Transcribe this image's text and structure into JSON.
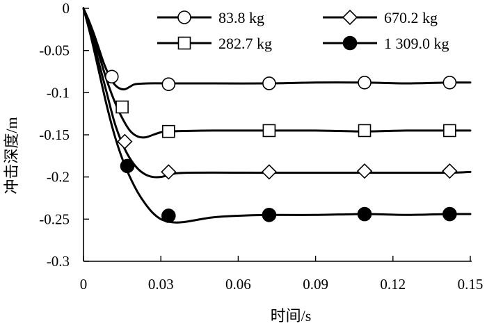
{
  "chart_data": {
    "type": "line",
    "title": "",
    "xlabel": "时间/s",
    "ylabel": "冲击深度/m",
    "xlim": [
      0,
      0.15
    ],
    "ylim": [
      -0.3,
      0
    ],
    "xticks": [
      0,
      0.03,
      0.06,
      0.09,
      0.12,
      0.15
    ],
    "xtick_labels": [
      "0",
      "0.03",
      "0.06",
      "0.09",
      "0.12",
      "0.15"
    ],
    "yticks": [
      0,
      -0.05,
      -0.1,
      -0.15,
      -0.2,
      -0.25,
      -0.3
    ],
    "ytick_labels": [
      "0",
      "-0.05",
      "-0.1",
      "-0.15",
      "-0.2",
      "-0.25",
      "-0.3"
    ],
    "grid": false,
    "legend_position": "top",
    "series": [
      {
        "name": "83.8 kg",
        "marker": "circle-open",
        "curve": [
          [
            0,
            0
          ],
          [
            0.002,
            -0.014
          ],
          [
            0.004,
            -0.03
          ],
          [
            0.006,
            -0.048
          ],
          [
            0.008,
            -0.066
          ],
          [
            0.01,
            -0.08
          ],
          [
            0.012,
            -0.09
          ],
          [
            0.014,
            -0.095
          ],
          [
            0.016,
            -0.096
          ],
          [
            0.018,
            -0.093
          ],
          [
            0.02,
            -0.09
          ],
          [
            0.025,
            -0.089
          ],
          [
            0.033,
            -0.089
          ],
          [
            0.05,
            -0.089
          ],
          [
            0.072,
            -0.089
          ],
          [
            0.09,
            -0.088
          ],
          [
            0.109,
            -0.088
          ],
          [
            0.125,
            -0.089
          ],
          [
            0.142,
            -0.088
          ],
          [
            0.15,
            -0.088
          ]
        ],
        "markers": [
          [
            0.011,
            -0.081
          ],
          [
            0.033,
            -0.09
          ],
          [
            0.072,
            -0.089
          ],
          [
            0.109,
            -0.088
          ],
          [
            0.142,
            -0.088
          ]
        ]
      },
      {
        "name": "282.7 kg",
        "marker": "square-open",
        "curve": [
          [
            0,
            0
          ],
          [
            0.003,
            -0.025
          ],
          [
            0.006,
            -0.055
          ],
          [
            0.009,
            -0.085
          ],
          [
            0.012,
            -0.11
          ],
          [
            0.015,
            -0.13
          ],
          [
            0.018,
            -0.145
          ],
          [
            0.021,
            -0.152
          ],
          [
            0.024,
            -0.153
          ],
          [
            0.027,
            -0.15
          ],
          [
            0.03,
            -0.147
          ],
          [
            0.033,
            -0.146
          ],
          [
            0.05,
            -0.145
          ],
          [
            0.072,
            -0.145
          ],
          [
            0.09,
            -0.145
          ],
          [
            0.109,
            -0.146
          ],
          [
            0.125,
            -0.145
          ],
          [
            0.142,
            -0.145
          ],
          [
            0.15,
            -0.145
          ]
        ],
        "markers": [
          [
            0.015,
            -0.117
          ],
          [
            0.033,
            -0.146
          ],
          [
            0.072,
            -0.145
          ],
          [
            0.109,
            -0.145
          ],
          [
            0.142,
            -0.145
          ]
        ]
      },
      {
        "name": "670.2 kg",
        "marker": "diamond-open",
        "curve": [
          [
            0,
            0
          ],
          [
            0.003,
            -0.03
          ],
          [
            0.006,
            -0.065
          ],
          [
            0.009,
            -0.1
          ],
          [
            0.012,
            -0.135
          ],
          [
            0.015,
            -0.16
          ],
          [
            0.018,
            -0.178
          ],
          [
            0.021,
            -0.19
          ],
          [
            0.024,
            -0.197
          ],
          [
            0.027,
            -0.2
          ],
          [
            0.03,
            -0.2
          ],
          [
            0.033,
            -0.198
          ],
          [
            0.04,
            -0.195
          ],
          [
            0.072,
            -0.195
          ],
          [
            0.09,
            -0.195
          ],
          [
            0.109,
            -0.195
          ],
          [
            0.125,
            -0.195
          ],
          [
            0.142,
            -0.195
          ],
          [
            0.15,
            -0.194
          ]
        ],
        "markers": [
          [
            0.016,
            -0.158
          ],
          [
            0.033,
            -0.194
          ],
          [
            0.072,
            -0.194
          ],
          [
            0.109,
            -0.193
          ],
          [
            0.142,
            -0.193
          ]
        ]
      },
      {
        "name": "1 309.0 kg",
        "marker": "circle-filled",
        "curve": [
          [
            0,
            0
          ],
          [
            0.003,
            -0.035
          ],
          [
            0.006,
            -0.075
          ],
          [
            0.009,
            -0.115
          ],
          [
            0.012,
            -0.15
          ],
          [
            0.015,
            -0.178
          ],
          [
            0.018,
            -0.2
          ],
          [
            0.021,
            -0.218
          ],
          [
            0.024,
            -0.232
          ],
          [
            0.027,
            -0.243
          ],
          [
            0.03,
            -0.25
          ],
          [
            0.033,
            -0.253
          ],
          [
            0.036,
            -0.254
          ],
          [
            0.04,
            -0.253
          ],
          [
            0.05,
            -0.248
          ],
          [
            0.06,
            -0.246
          ],
          [
            0.072,
            -0.245
          ],
          [
            0.09,
            -0.245
          ],
          [
            0.109,
            -0.244
          ],
          [
            0.125,
            -0.245
          ],
          [
            0.142,
            -0.244
          ],
          [
            0.15,
            -0.244
          ]
        ],
        "markers": [
          [
            0.017,
            -0.187
          ],
          [
            0.033,
            -0.246
          ],
          [
            0.072,
            -0.245
          ],
          [
            0.109,
            -0.244
          ],
          [
            0.142,
            -0.244
          ]
        ]
      }
    ]
  }
}
